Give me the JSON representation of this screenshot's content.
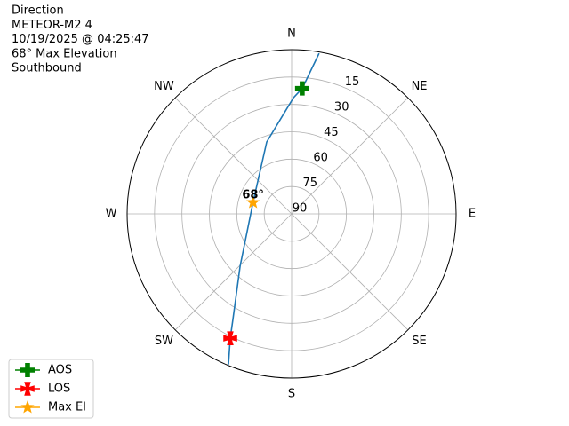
{
  "chart_data": {
    "type": "polar",
    "text_lines": [
      "Direction",
      "METEOR-M2 4",
      "10/19/2025 @ 04:25:47",
      "68° Max Elevation",
      "Southbound"
    ],
    "rlim": [
      90,
      0
    ],
    "rticks": [
      15,
      30,
      45,
      60,
      75,
      90
    ],
    "theta_ticks": [
      {
        "value": 0,
        "label": "N"
      },
      {
        "value": 45,
        "label": "NE"
      },
      {
        "value": 90,
        "label": "E"
      },
      {
        "value": 135,
        "label": "SE"
      },
      {
        "value": 180,
        "label": "S"
      },
      {
        "value": 225,
        "label": "SW"
      },
      {
        "value": 270,
        "label": "W"
      },
      {
        "value": 315,
        "label": "NW"
      }
    ],
    "grid": true,
    "track": {
      "color": "#1f77b4",
      "azimuth": [
        9.7,
        4.8,
        0.9,
        340.9,
        286.5,
        224.5,
        209,
        206.2,
        202.7
      ],
      "elevation": [
        0.7,
        21,
        26.3,
        48.3,
        68,
        49.8,
        23.8,
        14,
        0.5
      ]
    },
    "series": [
      {
        "name": "AOS",
        "color": "#008000",
        "marker": "plus",
        "azimuth": [
          4.8
        ],
        "elevation": [
          21
        ]
      },
      {
        "name": "LOS",
        "color": "#ff0000",
        "marker": "x",
        "azimuth": [
          206.2
        ],
        "elevation": [
          14
        ]
      },
      {
        "name": "Max El",
        "color": "#ffa500",
        "marker": "star",
        "azimuth": [
          286.5
        ],
        "elevation": [
          68
        ]
      }
    ],
    "annotation": {
      "text": "68°",
      "azimuth": 286.5,
      "elevation": 68
    },
    "legend": "lower left"
  }
}
